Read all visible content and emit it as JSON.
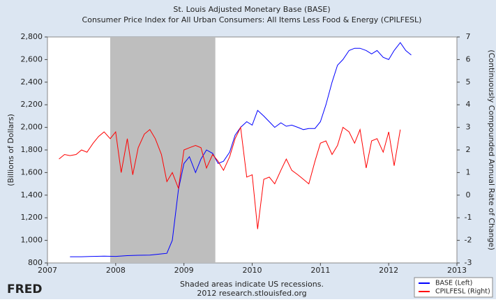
{
  "chart_data": {
    "type": "line",
    "title": "St. Louis Adjusted Monetary Base (BASE)",
    "subtitle": "Consumer Price Index for All Urban Consumers: All Items Less Food & Energy (CPILFESL)",
    "ylabel": "(Billions of Dollars)",
    "y2label": "(Continuously Compounded Annual Rate of Change)",
    "note": "Shaded areas indicate US recessions.",
    "source": "2012 research.stlouisfed.org",
    "logo": "FRED",
    "recession_x": [
      2007.92,
      2009.46
    ],
    "recession_color": "#bebebe",
    "xlim": [
      2007,
      2013
    ],
    "xticks": [
      2007,
      2008,
      2009,
      2010,
      2011,
      2012,
      2013
    ],
    "ylim": [
      800,
      2800
    ],
    "yticks": [
      {
        "value": 800,
        "label": "800"
      },
      {
        "value": 1000,
        "label": "1,000"
      },
      {
        "value": 1200,
        "label": "1,200"
      },
      {
        "value": 1400,
        "label": "1,400"
      },
      {
        "value": 1600,
        "label": "1,600"
      },
      {
        "value": 1800,
        "label": "1,800"
      },
      {
        "value": 2000,
        "label": "2,000"
      },
      {
        "value": 2200,
        "label": "2,200"
      },
      {
        "value": 2400,
        "label": "2,400"
      },
      {
        "value": 2600,
        "label": "2,600"
      },
      {
        "value": 2800,
        "label": "2,800"
      }
    ],
    "y2lim": [
      -3,
      7
    ],
    "y2ticks": [
      -3,
      -2,
      -1,
      0,
      1,
      2,
      3,
      4,
      5,
      6,
      7
    ],
    "series": [
      {
        "name": "BASE (Left)",
        "color": "#0000ff",
        "x": [
          2007.33,
          2007.5,
          2007.67,
          2007.83,
          2008.0,
          2008.17,
          2008.33,
          2008.5,
          2008.67,
          2008.75,
          2008.83,
          2008.92,
          2009.0,
          2009.08,
          2009.17,
          2009.25,
          2009.33,
          2009.42,
          2009.5,
          2009.58,
          2009.67,
          2009.75,
          2009.83,
          2009.92,
          2010.0,
          2010.08,
          2010.17,
          2010.25,
          2010.33,
          2010.42,
          2010.5,
          2010.58,
          2010.67,
          2010.75,
          2010.83,
          2010.92,
          2011.0,
          2011.08,
          2011.17,
          2011.25,
          2011.33,
          2011.42,
          2011.5,
          2011.58,
          2011.67,
          2011.75,
          2011.83,
          2011.92,
          2012.0,
          2012.08,
          2012.17,
          2012.25,
          2012.33
        ],
        "values": [
          855,
          855,
          858,
          860,
          858,
          865,
          868,
          870,
          880,
          885,
          1000,
          1450,
          1680,
          1740,
          1600,
          1720,
          1800,
          1770,
          1680,
          1700,
          1780,
          1930,
          2000,
          2050,
          2020,
          2150,
          2100,
          2050,
          2000,
          2040,
          2010,
          2020,
          2000,
          1980,
          1990,
          1990,
          2050,
          2200,
          2400,
          2550,
          2600,
          2680,
          2700,
          2700,
          2680,
          2650,
          2680,
          2620,
          2600,
          2680,
          2750,
          2680,
          2640
        ]
      },
      {
        "name": "CPILFESL (Right)",
        "color": "#ff0000",
        "axis": "y2",
        "x": [
          2007.17,
          2007.25,
          2007.33,
          2007.42,
          2007.5,
          2007.58,
          2007.67,
          2007.75,
          2007.83,
          2007.92,
          2008.0,
          2008.08,
          2008.17,
          2008.25,
          2008.33,
          2008.42,
          2008.5,
          2008.58,
          2008.67,
          2008.75,
          2008.83,
          2008.92,
          2009.0,
          2009.08,
          2009.17,
          2009.25,
          2009.33,
          2009.42,
          2009.5,
          2009.58,
          2009.67,
          2009.75,
          2009.83,
          2009.92,
          2010.0,
          2010.08,
          2010.17,
          2010.25,
          2010.33,
          2010.42,
          2010.5,
          2010.58,
          2010.67,
          2010.75,
          2010.83,
          2010.92,
          2011.0,
          2011.08,
          2011.17,
          2011.25,
          2011.33,
          2011.42,
          2011.5,
          2011.58,
          2011.67,
          2011.75,
          2011.83,
          2011.92,
          2012.0,
          2012.08,
          2012.17
        ],
        "values": [
          1.6,
          1.8,
          1.75,
          1.8,
          2.0,
          1.9,
          2.3,
          2.6,
          2.8,
          2.5,
          2.8,
          1.0,
          2.5,
          0.9,
          2.1,
          2.7,
          2.9,
          2.5,
          1.8,
          0.6,
          1.0,
          0.3,
          2.0,
          2.1,
          2.2,
          2.1,
          1.2,
          1.8,
          1.5,
          1.1,
          1.7,
          2.5,
          3.0,
          0.8,
          0.9,
          -1.5,
          0.7,
          0.8,
          0.5,
          1.1,
          1.6,
          1.1,
          0.9,
          0.7,
          0.5,
          1.5,
          2.3,
          2.4,
          1.8,
          2.2,
          3.0,
          2.8,
          2.3,
          2.9,
          1.2,
          2.4,
          2.5,
          1.9,
          2.8,
          1.3,
          2.9
        ]
      }
    ]
  }
}
